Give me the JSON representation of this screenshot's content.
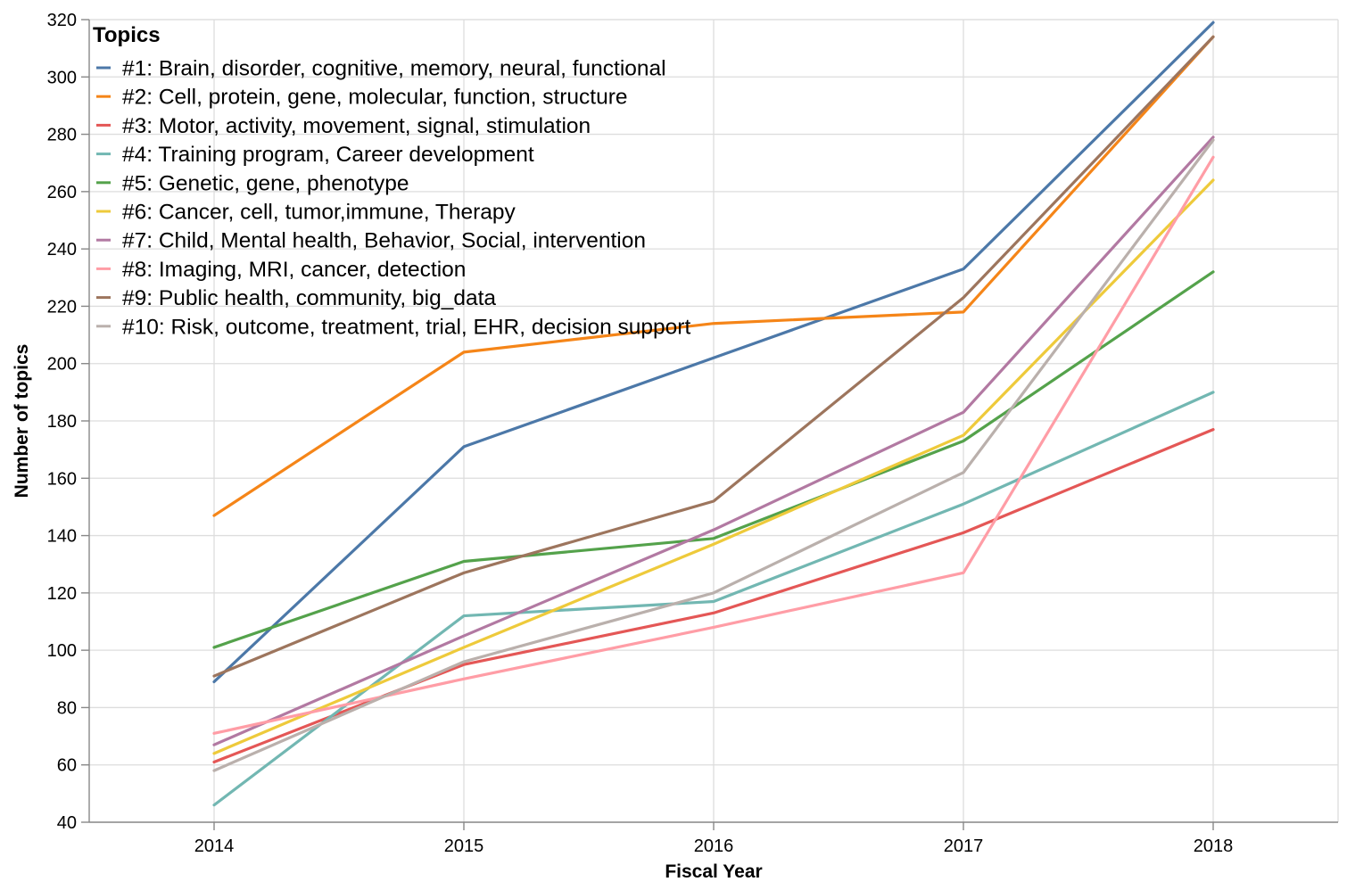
{
  "chart_data": {
    "type": "line",
    "title": "",
    "xlabel": "Fiscal Year",
    "ylabel": "Number of topics",
    "x": [
      "2014",
      "2015",
      "2016",
      "2017",
      "2018"
    ],
    "xlim": [
      2013.5,
      2018.5
    ],
    "ylim": [
      40,
      320
    ],
    "yticks": [
      40,
      60,
      80,
      100,
      120,
      140,
      160,
      180,
      200,
      220,
      240,
      260,
      280,
      300,
      320
    ],
    "grid": true,
    "legend_title": "Topics",
    "legend_position": "top-left",
    "series": [
      {
        "name": "#1: Brain, disorder, cognitive, memory, neural, functional",
        "color": "#4c78a8",
        "values": [
          89,
          171,
          202,
          233,
          319
        ]
      },
      {
        "name": "#2: Cell, protein, gene, molecular, function, structure",
        "color": "#f58518",
        "values": [
          147,
          204,
          214,
          218,
          314
        ]
      },
      {
        "name": "#3: Motor, activity, movement, signal, stimulation",
        "color": "#e45756",
        "values": [
          61,
          95,
          113,
          141,
          177
        ]
      },
      {
        "name": "#4: Training program, Career development",
        "color": "#72b7b2",
        "values": [
          46,
          112,
          117,
          151,
          190
        ]
      },
      {
        "name": "#5: Genetic, gene, phenotype",
        "color": "#54a24b",
        "values": [
          101,
          131,
          139,
          173,
          232
        ]
      },
      {
        "name": "#6: Cancer, cell, tumor,immune, Therapy",
        "color": "#eeca3b",
        "values": [
          64,
          101,
          137,
          175,
          264
        ]
      },
      {
        "name": "#7: Child, Mental health, Behavior, Social, intervention",
        "color": "#b279a2",
        "values": [
          67,
          105,
          142,
          183,
          279
        ]
      },
      {
        "name": "#8: Imaging, MRI, cancer, detection",
        "color": "#ff9da6",
        "values": [
          71,
          90,
          108,
          127,
          272
        ]
      },
      {
        "name": "#9: Public health, community, big_data",
        "color": "#9d755d",
        "values": [
          91,
          127,
          152,
          223,
          314
        ]
      },
      {
        "name": "#10: Risk, outcome, treatment, trial, EHR, decision support",
        "color": "#bab0ac",
        "values": [
          58,
          96,
          120,
          162,
          278
        ]
      }
    ]
  }
}
